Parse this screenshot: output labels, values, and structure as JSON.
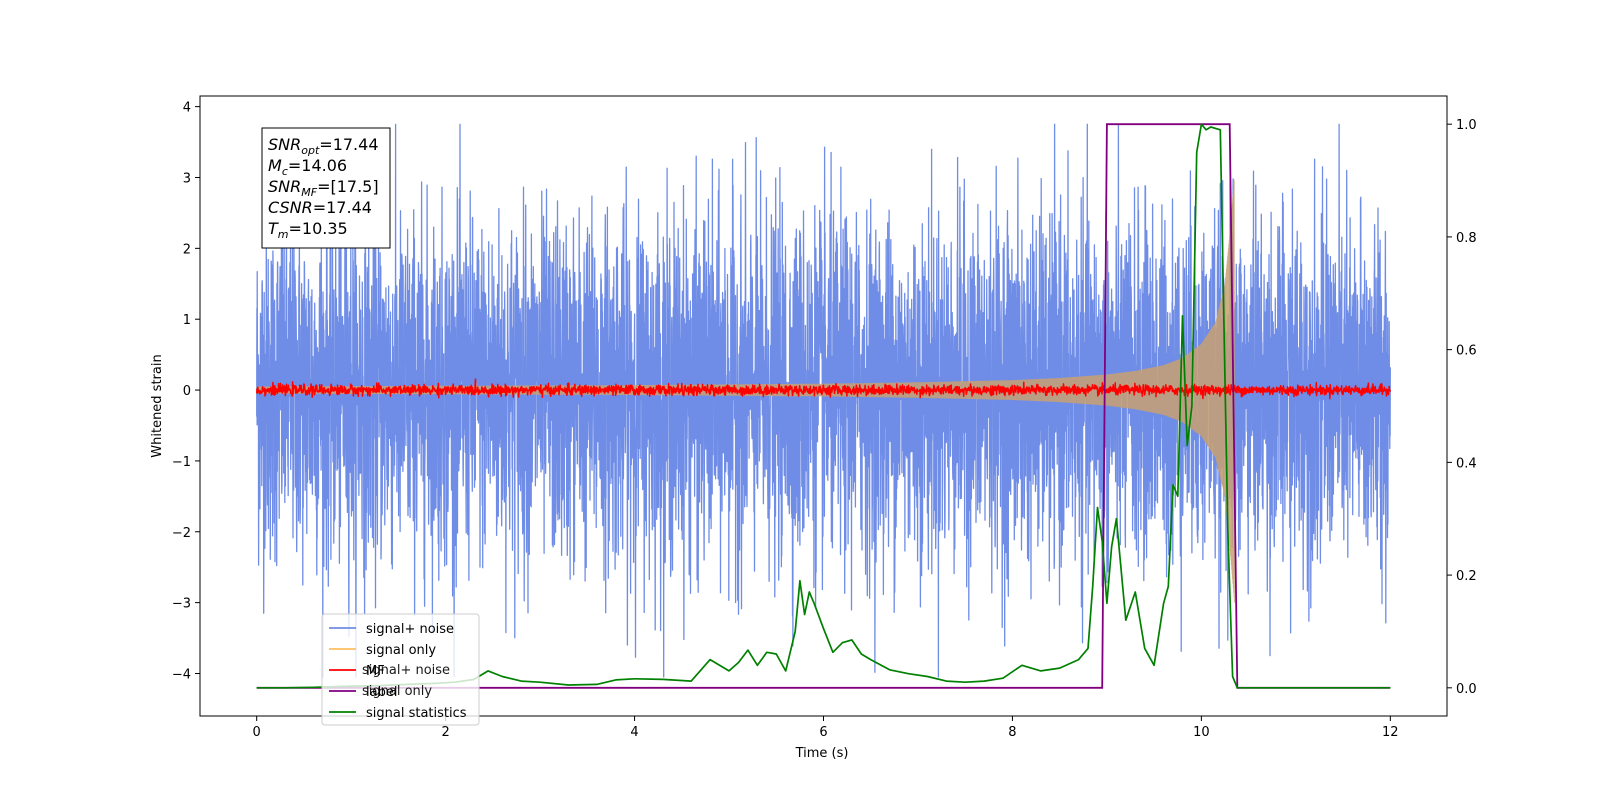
{
  "chart_data": {
    "type": "line",
    "title": "",
    "xlabel": "Time (s)",
    "ylabel": "Whitened strain",
    "xlim": [
      -0.6,
      12.6
    ],
    "ylim": [
      -4.6,
      4.15
    ],
    "ylim_right": [
      -0.05,
      1.05
    ],
    "xticks": [
      0,
      2,
      4,
      6,
      8,
      10,
      12
    ],
    "yticks": [
      -4,
      -3,
      -2,
      -1,
      0,
      1,
      2,
      3,
      4
    ],
    "yticks_right": [
      0.0,
      0.2,
      0.4,
      0.6,
      0.8,
      1.0
    ],
    "xtick_labels": [
      "0",
      "2",
      "4",
      "6",
      "8",
      "10",
      "12"
    ],
    "ytick_labels": [
      "−4",
      "−3",
      "−2",
      "−1",
      "0",
      "1",
      "2",
      "3",
      "4"
    ],
    "ytick_right_labels": [
      "0.0",
      "0.2",
      "0.4",
      "0.6",
      "0.8",
      "1.0"
    ],
    "grid": false,
    "legend_position": "lower-left",
    "info_box": {
      "position": "top-left",
      "lines": [
        {
          "main": "SNR",
          "sub": "opt",
          "value": "=17.44"
        },
        {
          "main": "M",
          "sub": "c",
          "value": "=14.06"
        },
        {
          "main": "SNR",
          "sub": "MF",
          "value": "=[17.5]"
        },
        {
          "main": "CSNR",
          "sub": "",
          "value": "=17.44"
        },
        {
          "main": "T",
          "sub": "m",
          "value": "=10.35"
        }
      ]
    },
    "legend_entries": [
      {
        "label": "signal+ noise",
        "color": "#6f8de6"
      },
      {
        "label": "signal only",
        "color": "#ffbf5f"
      },
      {
        "label": "MF",
        "color": "#ff0000"
      },
      {
        "label": "label",
        "color": "#800080"
      },
      {
        "label": "signal statistics",
        "color": "#008000"
      }
    ],
    "ghost_legend_entries": [
      "signal+ noise",
      "signal only"
    ],
    "series": [
      {
        "name": "signal+ noise",
        "axis": "left",
        "color": "#6f8de6",
        "description_values": {
          "t_start": 0,
          "t_end": 12,
          "typical_amplitude": 1.2,
          "peak_positive": 3.75,
          "peak_negative": -4.05
        }
      },
      {
        "name": "signal only",
        "axis": "left",
        "color": "#c8a070",
        "envelope": {
          "t": [
            0,
            2,
            4,
            6,
            7,
            8,
            8.5,
            9,
            9.3,
            9.6,
            9.8,
            10.0,
            10.15,
            10.25,
            10.3,
            10.35
          ],
          "amp": [
            0.05,
            0.06,
            0.07,
            0.09,
            0.11,
            0.14,
            0.17,
            0.22,
            0.27,
            0.35,
            0.45,
            0.65,
            0.95,
            1.5,
            2.2,
            3.0
          ]
        }
      },
      {
        "name": "MF",
        "axis": "left",
        "color": "#ff0000",
        "description_values": {
          "t_start": 0,
          "t_end": 12,
          "mean": 0.0,
          "amplitude": 0.08
        }
      },
      {
        "name": "label",
        "axis": "right",
        "color": "#800080",
        "x": [
          0,
          8.95,
          9.0,
          10.3,
          10.38,
          12
        ],
        "y": [
          0,
          0,
          1,
          1,
          0,
          0
        ]
      },
      {
        "name": "signal statistics",
        "axis": "right",
        "color": "#008000",
        "x": [
          0,
          0.3,
          0.6,
          1.0,
          1.3,
          1.6,
          1.9,
          2.1,
          2.3,
          2.45,
          2.6,
          2.8,
          3.0,
          3.3,
          3.6,
          3.8,
          4.0,
          4.3,
          4.6,
          4.8,
          5.0,
          5.1,
          5.2,
          5.3,
          5.4,
          5.5,
          5.6,
          5.7,
          5.75,
          5.8,
          5.85,
          5.9,
          6.0,
          6.1,
          6.2,
          6.3,
          6.4,
          6.5,
          6.7,
          6.9,
          7.1,
          7.3,
          7.5,
          7.7,
          7.9,
          8.1,
          8.3,
          8.5,
          8.7,
          8.8,
          8.85,
          8.9,
          8.95,
          9.0,
          9.05,
          9.1,
          9.2,
          9.3,
          9.4,
          9.5,
          9.6,
          9.65,
          9.7,
          9.75,
          9.8,
          9.85,
          9.9,
          9.95,
          10.0,
          10.05,
          10.1,
          10.2,
          10.28,
          10.33,
          10.38,
          10.5,
          11,
          12
        ],
        "y": [
          0.0,
          0.0,
          0.001,
          0.003,
          0.004,
          0.006,
          0.008,
          0.01,
          0.015,
          0.03,
          0.02,
          0.012,
          0.01,
          0.005,
          0.006,
          0.014,
          0.016,
          0.015,
          0.012,
          0.05,
          0.03,
          0.045,
          0.067,
          0.04,
          0.063,
          0.06,
          0.03,
          0.1,
          0.19,
          0.13,
          0.17,
          0.15,
          0.105,
          0.063,
          0.08,
          0.085,
          0.06,
          0.05,
          0.032,
          0.025,
          0.02,
          0.012,
          0.01,
          0.012,
          0.017,
          0.04,
          0.03,
          0.035,
          0.05,
          0.07,
          0.18,
          0.32,
          0.26,
          0.15,
          0.25,
          0.3,
          0.12,
          0.17,
          0.07,
          0.04,
          0.15,
          0.18,
          0.36,
          0.34,
          0.66,
          0.43,
          0.5,
          0.95,
          1.0,
          0.99,
          0.995,
          0.99,
          0.28,
          0.02,
          0.0,
          0.0,
          0.0,
          0.0
        ]
      }
    ]
  }
}
